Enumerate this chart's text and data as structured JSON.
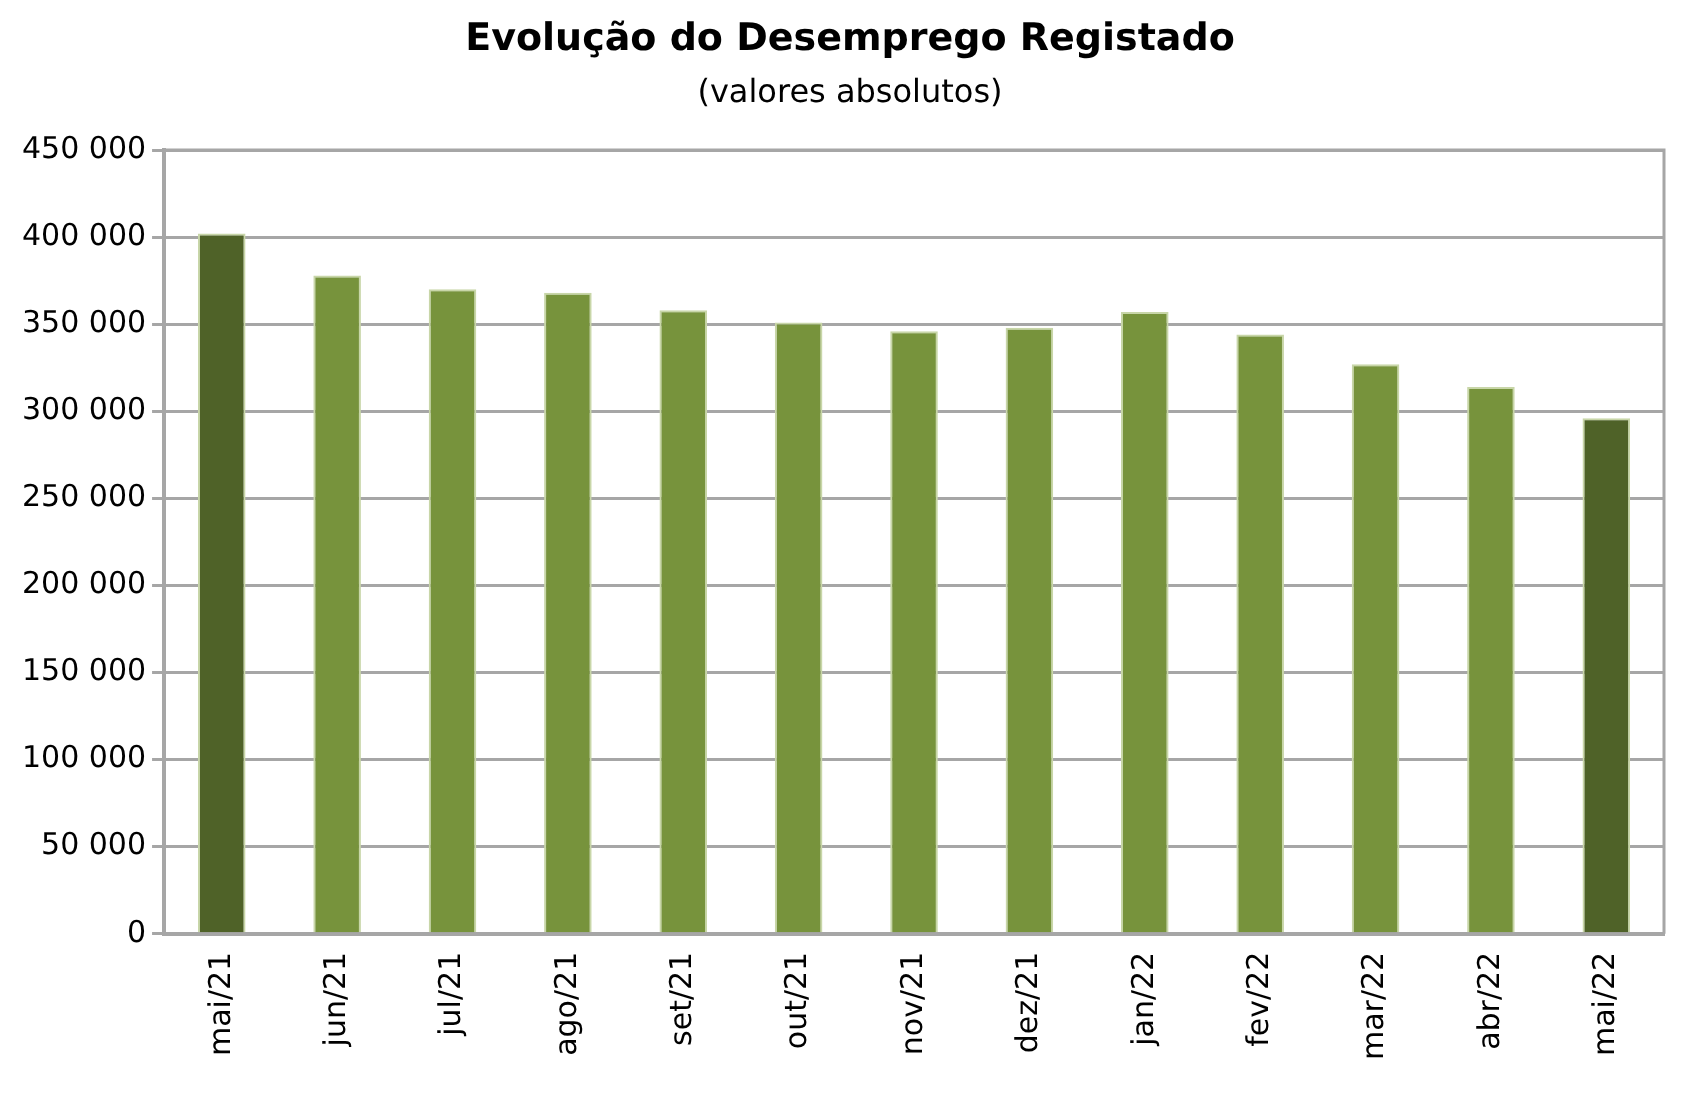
{
  "chart_data": {
    "type": "bar",
    "title": "Evolução do Desemprego Registado",
    "subtitle": "(valores absolutos)",
    "categories": [
      "mai/21",
      "jun/21",
      "jul/21",
      "ago/21",
      "set/21",
      "out/21",
      "nov/21",
      "dez/21",
      "jan/22",
      "fev/22",
      "mar/22",
      "abr/22",
      "mai/22"
    ],
    "values": [
      402000,
      378000,
      370000,
      368000,
      358000,
      351000,
      346000,
      348000,
      357000,
      344000,
      327000,
      314000,
      296000
    ],
    "colors": [
      "#4f6228",
      "#77933c",
      "#77933c",
      "#77933c",
      "#77933c",
      "#77933c",
      "#77933c",
      "#77933c",
      "#77933c",
      "#77933c",
      "#77933c",
      "#77933c",
      "#4f6228"
    ],
    "ylim": [
      0,
      450000
    ],
    "yticks": [
      {
        "value": 0,
        "label": "0"
      },
      {
        "value": 50000,
        "label": "50 000"
      },
      {
        "value": 100000,
        "label": "100 000"
      },
      {
        "value": 150000,
        "label": "150 000"
      },
      {
        "value": 200000,
        "label": "200 000"
      },
      {
        "value": 250000,
        "label": "250 000"
      },
      {
        "value": 300000,
        "label": "300 000"
      },
      {
        "value": 350000,
        "label": "350 000"
      },
      {
        "value": 400000,
        "label": "400 000"
      },
      {
        "value": 450000,
        "label": "450 000"
      }
    ],
    "grid": "y",
    "legend": false
  }
}
